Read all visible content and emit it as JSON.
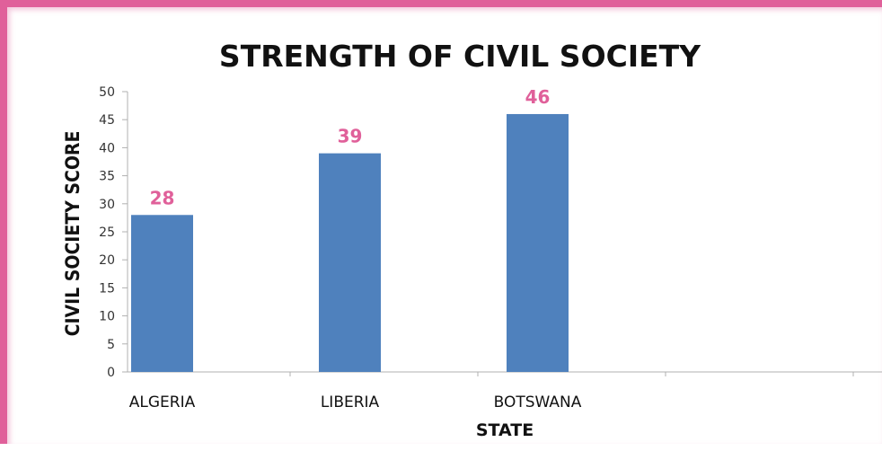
{
  "chart_data": {
    "type": "bar",
    "title": "STRENGTH OF CIVIL SOCIETY",
    "xlabel": "STATE",
    "ylabel": "CIVIL SOCIETY SCORE",
    "categories": [
      "ALGERIA",
      "LIBERIA",
      "BOTSWANA"
    ],
    "series": [
      {
        "values": [
          28,
          39,
          46
        ]
      }
    ],
    "data_labels": [
      "28",
      "39",
      "46"
    ],
    "ylim": [
      0,
      50
    ],
    "yticks": [
      0,
      5,
      10,
      15,
      20,
      25,
      30,
      35,
      40,
      45,
      50
    ],
    "grid": false,
    "legend": "none",
    "colors": {
      "bar": "#4f81bd",
      "data_label": "#e0609a",
      "frame": "#e0609a",
      "axis": "#b0b0b0"
    }
  }
}
